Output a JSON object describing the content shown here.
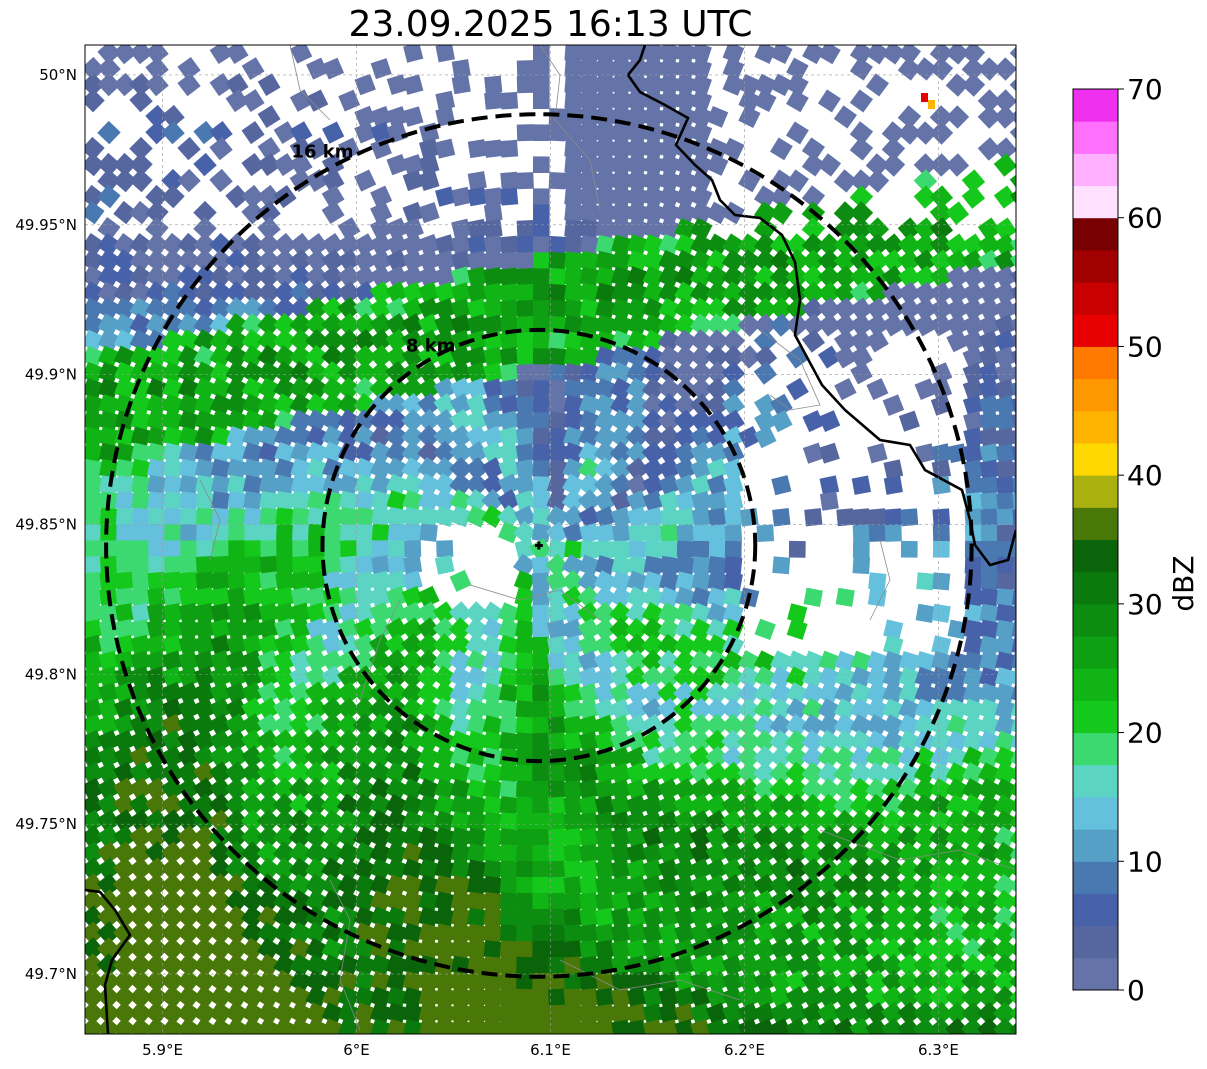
{
  "title": "23.09.2025 16:13 UTC",
  "map": {
    "lon_range": [
      5.86,
      6.34
    ],
    "lat_range": [
      49.68,
      50.01
    ],
    "lon_ticks": [
      {
        "value": 5.9,
        "label": "5.9°E"
      },
      {
        "value": 6.0,
        "label": "6°E"
      },
      {
        "value": 6.1,
        "label": "6.1°E"
      },
      {
        "value": 6.2,
        "label": "6.2°E"
      },
      {
        "value": 6.3,
        "label": "6.3°E"
      }
    ],
    "lat_ticks": [
      {
        "value": 50.0,
        "label": "50°N"
      },
      {
        "value": 49.95,
        "label": "49.95°N"
      },
      {
        "value": 49.9,
        "label": "49.9°N"
      },
      {
        "value": 49.85,
        "label": "49.85°N"
      },
      {
        "value": 49.8,
        "label": "49.8°N"
      },
      {
        "value": 49.75,
        "label": "49.75°N"
      },
      {
        "value": 49.7,
        "label": "49.7°N"
      }
    ],
    "gridlines": true,
    "radar_site": {
      "lon": 6.094,
      "lat": 49.843
    },
    "range_rings": [
      {
        "radius_km": 8,
        "label": "8 km"
      },
      {
        "radius_km": 16,
        "label": "16 km"
      }
    ]
  },
  "colorbar": {
    "label": "dBZ",
    "min": 0,
    "max": 70,
    "ticks": [
      0,
      10,
      20,
      30,
      40,
      50,
      60,
      70
    ],
    "colors": [
      "#6474a8",
      "#5667a0",
      "#4862aa",
      "#4a78b0",
      "#56a0c8",
      "#64c0dc",
      "#5cd4c4",
      "#3cd870",
      "#14c81c",
      "#10b414",
      "#0ea012",
      "#0c8c10",
      "#0b7a0c",
      "#0a640a",
      "#4a7808",
      "#aab010",
      "#ffd800",
      "#ffb400",
      "#ff9800",
      "#ff7800",
      "#e80000",
      "#c80000",
      "#a00000",
      "#780000",
      "#ffe0ff",
      "#ffb0ff",
      "#ff70ff",
      "#f030f0"
    ]
  },
  "chart_data": {
    "type": "heatmap",
    "title": "23.09.2025 16:13 UTC",
    "xlabel": "",
    "ylabel": "",
    "xlim": [
      5.86,
      6.34
    ],
    "ylim": [
      49.68,
      50.01
    ],
    "colorbar_label": "dBZ",
    "colorbar_range": [
      0,
      70
    ],
    "regions": [
      {
        "description": "no echo",
        "dbz": null
      },
      {
        "description": "light echo north and center",
        "dbz": [
          0,
          15
        ]
      },
      {
        "description": "moderate band across south and west",
        "dbz": [
          20,
          35
        ]
      }
    ]
  }
}
